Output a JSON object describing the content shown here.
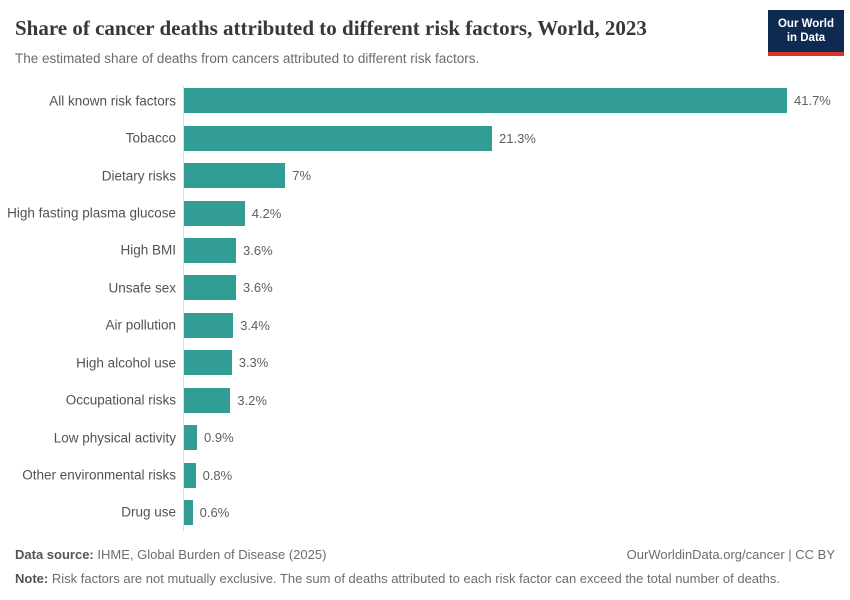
{
  "header": {
    "title": "Share of cancer deaths attributed to different risk factors, World, 2023",
    "subtitle": "The estimated share of deaths from cancers attributed to different risk factors.",
    "logo": {
      "line1": "Our World",
      "line2": "in Data"
    }
  },
  "chart_data": {
    "type": "bar",
    "orientation": "horizontal",
    "title": "Share of cancer deaths attributed to different risk factors, World, 2023",
    "xlabel": "",
    "ylabel": "",
    "xlim": [
      0,
      41.7
    ],
    "grid": false,
    "legend": "none",
    "categories": [
      "All known risk factors",
      "Tobacco",
      "Dietary risks",
      "High fasting plasma glucose",
      "High BMI",
      "Unsafe sex",
      "Air pollution",
      "High alcohol use",
      "Occupational risks",
      "Low physical activity",
      "Other environmental risks",
      "Drug use"
    ],
    "values": [
      41.7,
      21.3,
      7,
      4.2,
      3.6,
      3.6,
      3.4,
      3.3,
      3.2,
      0.9,
      0.8,
      0.6
    ],
    "value_labels": [
      "41.7%",
      "21.3%",
      "7%",
      "4.2%",
      "3.6%",
      "3.6%",
      "3.4%",
      "3.3%",
      "3.2%",
      "0.9%",
      "0.8%",
      "0.6%"
    ]
  },
  "colors": {
    "bar": "#319d95",
    "axis_line": "#dcdcdc",
    "logo_bg": "#0e2a50",
    "logo_accent": "#d1352c"
  },
  "footer": {
    "source_label": "Data source:",
    "source_text": "IHME, Global Burden of Disease (2025)",
    "attribution": "OurWorldinData.org/cancer | CC BY",
    "note_label": "Note:",
    "note_text": "Risk factors are not mutually exclusive. The sum of deaths attributed to each risk factor can exceed the total number of deaths."
  }
}
